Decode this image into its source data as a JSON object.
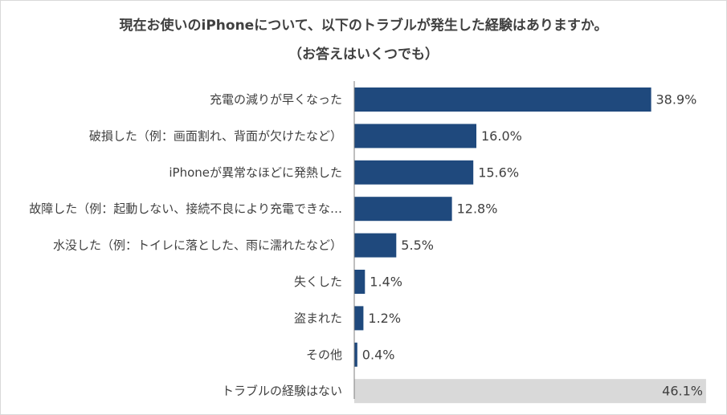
{
  "chart_data": {
    "type": "bar",
    "orientation": "horizontal",
    "title": "現在お使いのiPhoneについて、以下のトラブルが発生した経験はありますか。",
    "subtitle": "（お答えはいくつでも）",
    "categories": [
      "充電の減りが早くなった",
      "破損した（例：画面割れ、背面が欠けたなど）",
      "iPhoneが異常なほどに発熱した",
      "故障した（例：起動しない、接続不良により充電できな…",
      "水没した（例：トイレに落とした、雨に濡れたなど）",
      "失くした",
      "盗まれた",
      "その他",
      "トラブルの経験はない"
    ],
    "values": [
      38.9,
      16.0,
      15.6,
      12.8,
      5.5,
      1.4,
      1.2,
      0.4,
      46.1
    ],
    "value_labels": [
      "38.9%",
      "16.0%",
      "15.6%",
      "12.8%",
      "5.5%",
      "1.4%",
      "1.2%",
      "0.4%",
      "46.1%"
    ],
    "xlim": [
      0,
      50
    ],
    "grid": false,
    "colors": {
      "primary": "#1f497d",
      "none_bar": "#d9d9d9",
      "axis": "#7f7f7f",
      "text": "#404040",
      "title": "#404040"
    }
  }
}
